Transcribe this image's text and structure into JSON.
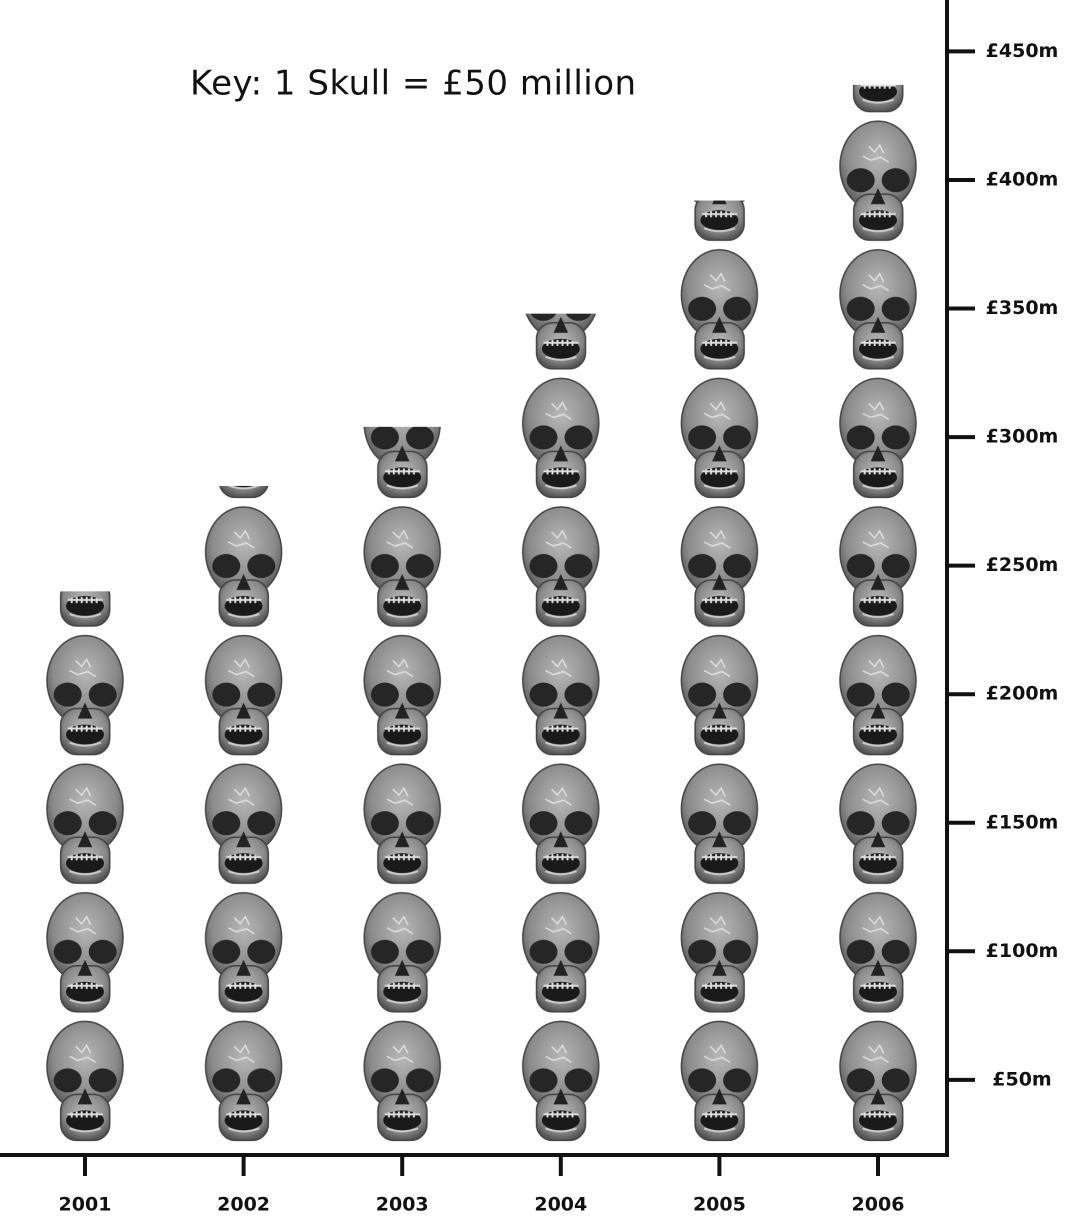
{
  "chart_data": {
    "type": "pictograph",
    "annotation": "Key: 1 Skull = £50 million",
    "categories": [
      "2001",
      "2002",
      "2003",
      "2004",
      "2005",
      "2006"
    ],
    "values": [
      240,
      281,
      304,
      348,
      392,
      437
    ],
    "color": "#8a8a8a",
    "ylim": [
      20,
      470
    ],
    "yticks": [
      {
        "value": 50,
        "label": "£50m"
      },
      {
        "value": 100,
        "label": "£100m"
      },
      {
        "value": 150,
        "label": "£150m"
      },
      {
        "value": 200,
        "label": "£200m"
      },
      {
        "value": 250,
        "label": "£250m"
      },
      {
        "value": 300,
        "label": "£300m"
      },
      {
        "value": 350,
        "label": "£350m"
      },
      {
        "value": 400,
        "label": "£400m"
      },
      {
        "value": 450,
        "label": "£450m"
      }
    ]
  }
}
